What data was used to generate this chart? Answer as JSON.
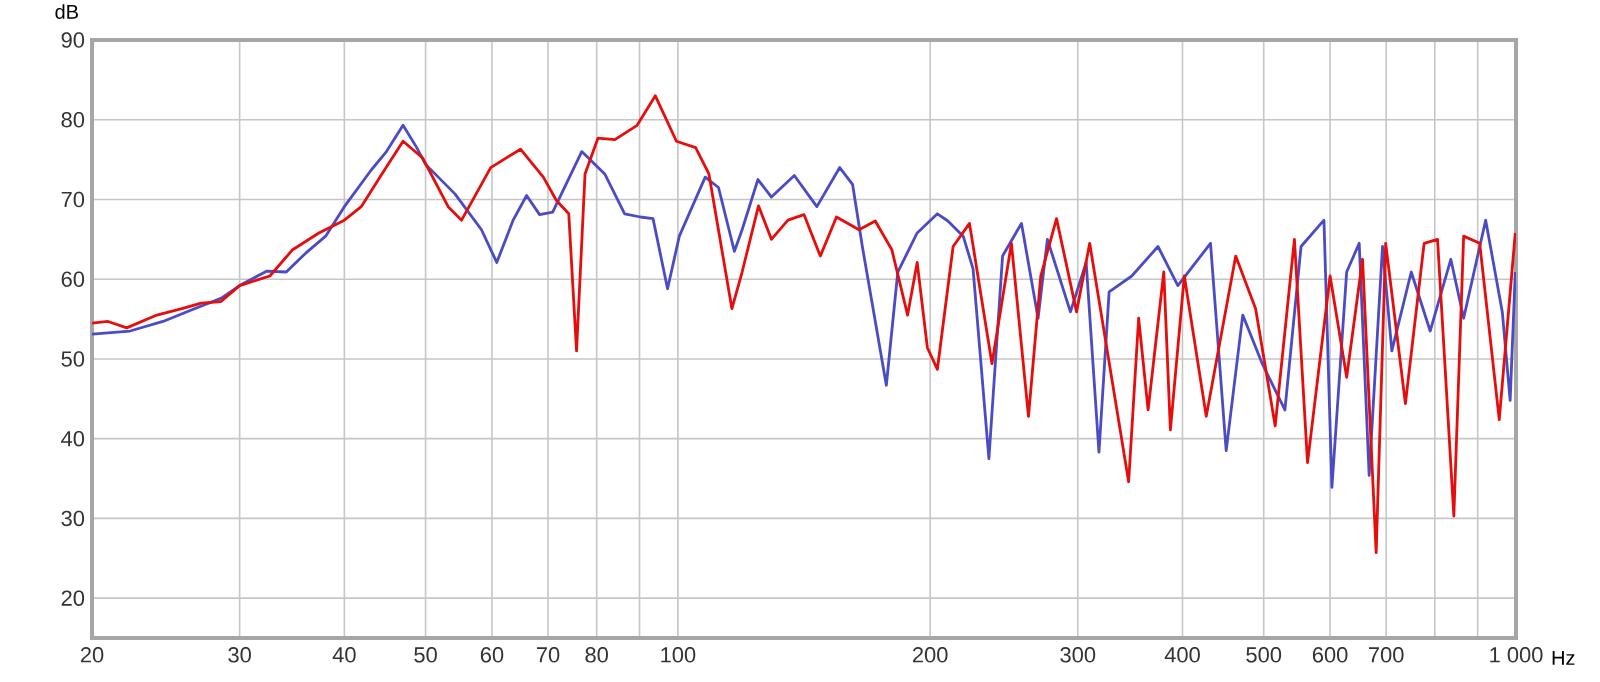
{
  "chart_data": {
    "type": "line",
    "xlabel": "Hz",
    "ylabel": "dB",
    "log": "x",
    "grid": true,
    "marker": "none",
    "line_style": "solid",
    "xlim": [
      20,
      1000
    ],
    "ylim": [
      15,
      90
    ],
    "xticks": [
      20,
      30,
      40,
      50,
      60,
      70,
      80,
      {
        "value": 90,
        "label": null
      },
      100,
      200,
      300,
      400,
      500,
      600,
      700,
      {
        "value": 800,
        "label": null
      },
      {
        "value": 900,
        "label": null
      },
      {
        "value": 1000,
        "label": "1 000"
      }
    ],
    "yticks": [
      20,
      30,
      40,
      50,
      60,
      70,
      80,
      90
    ],
    "series": [
      {
        "color": "#4b4bc6",
        "x": [
          20,
          22.2,
          24.3,
          26.5,
          28.5,
          30,
          32.3,
          34.1,
          36,
          38,
          40,
          43,
          44.9,
          47,
          48.8,
          50,
          54.2,
          58.3,
          60.8,
          63.6,
          66,
          68.4,
          70.9,
          76.8,
          81.8,
          86.4,
          90.2,
          93.4,
          97.2,
          100.4,
          107.8,
          111.8,
          116.8,
          119.3,
          124.6,
          129.3,
          137.7,
          146.5,
          156,
          161.6,
          166,
          177.3,
          183,
          193,
          204,
          210,
          219,
          225,
          235,
          244,
          257,
          269,
          276,
          294,
          307,
          318,
          327,
          348,
          374,
          395,
          432,
          451,
          472,
          498,
          530,
          554,
          590,
          603,
          628,
          650,
          668,
          693,
          711,
          750,
          790,
          836,
          866,
          920,
          963,
          984,
          998
        ],
        "values": [
          53.1,
          53.5,
          54.7,
          56.3,
          57.6,
          59.2,
          61,
          60.9,
          63.3,
          65.4,
          69.1,
          73.6,
          76,
          79.3,
          76.5,
          74.4,
          70.7,
          66.2,
          62.1,
          67.4,
          70.5,
          68.1,
          68.4,
          76,
          73.2,
          68.2,
          67.8,
          67.6,
          58.8,
          65.4,
          72.8,
          71.5,
          63.5,
          66.2,
          72.5,
          70.3,
          73,
          69.1,
          74,
          71.9,
          64.1,
          46.7,
          60.9,
          65.8,
          68.2,
          67.3,
          65.4,
          61.3,
          37.5,
          62.9,
          67,
          55.1,
          65,
          55.9,
          62.1,
          38.3,
          58.4,
          60.4,
          64.1,
          59.2,
          64.5,
          38.5,
          55.5,
          49.4,
          43.6,
          64.1,
          67.4,
          33.9,
          60.9,
          64.5,
          35.4,
          64.1,
          51,
          60.9,
          53.5,
          62.5,
          55.1,
          67.4,
          55.9,
          44.8,
          60.9
        ]
      },
      {
        "color": "#e60d0d",
        "x": [
          20,
          20.9,
          22,
          23.9,
          25.6,
          27,
          28.5,
          30,
          32.6,
          34.7,
          37.3,
          40,
          41.9,
          44.6,
          47,
          49.6,
          53.2,
          55.2,
          59.8,
          64.9,
          69.1,
          71.6,
          74.1,
          75.7,
          77.5,
          80.3,
          84.1,
          89.4,
          94,
          99.6,
          105,
          108.9,
          116,
          119.3,
          124.8,
          129.3,
          135.3,
          141.4,
          147.9,
          154.6,
          164.5,
          172,
          180,
          188,
          193,
          198.5,
          204,
          213,
          222.8,
          237,
          250,
          262,
          271,
          283,
          299,
          310,
          345,
          354.6,
          364,
          380,
          387,
          402,
          427,
          463,
          489,
          516,
          544,
          564,
          600,
          628,
          656,
          681,
          699,
          738,
          777,
          806,
          843,
          866,
          905,
          955,
          998
        ],
        "values": [
          54.5,
          54.7,
          53.9,
          55.5,
          56.3,
          57,
          57.2,
          59.2,
          60.4,
          63.7,
          65.8,
          67.4,
          69.1,
          73.6,
          77.3,
          75.2,
          69.1,
          67.4,
          74,
          76.3,
          72.8,
          69.9,
          68.2,
          51,
          73.2,
          77.7,
          77.5,
          79.3,
          83,
          77.3,
          76.5,
          73.2,
          56.3,
          60.9,
          69.2,
          65,
          67.4,
          68.1,
          62.9,
          67.8,
          66.2,
          67.3,
          63.7,
          55.5,
          62.1,
          51.4,
          48.7,
          64.1,
          67,
          49.4,
          64.5,
          42.8,
          60.4,
          67.6,
          55.9,
          64.5,
          34.6,
          55.1,
          43.6,
          60.9,
          41.1,
          60.4,
          42.8,
          62.9,
          56.3,
          41.6,
          65,
          37,
          60.4,
          47.7,
          62.5,
          25.7,
          64.5,
          44.4,
          64.5,
          65,
          30.3,
          65.4,
          64.5,
          42.4,
          65.8
        ]
      }
    ]
  }
}
